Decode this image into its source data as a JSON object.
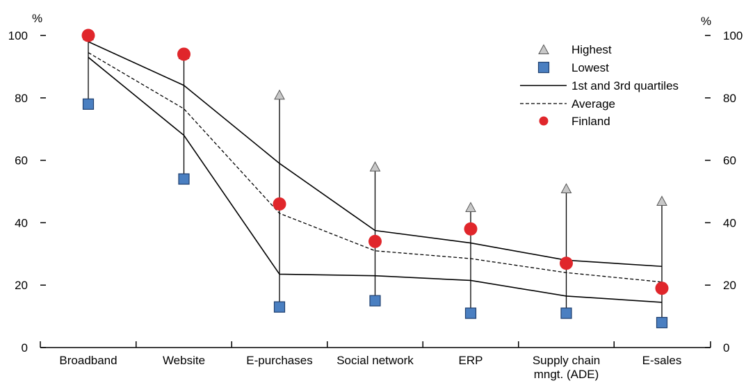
{
  "chart_data": {
    "type": "line",
    "y_unit_left": "%",
    "y_unit_right": "%",
    "ylim": [
      0,
      100
    ],
    "yticks": [
      0,
      20,
      40,
      60,
      80,
      100
    ],
    "categories": [
      [
        "Broadband"
      ],
      [
        "Website"
      ],
      [
        "E-purchases"
      ],
      [
        "Social network"
      ],
      [
        "ERP"
      ],
      [
        "Supply chain",
        "mngt. (ADE)"
      ],
      [
        "E-sales"
      ]
    ],
    "series": [
      {
        "name": "Highest",
        "marker": "triangle",
        "color": "#c8c8c8",
        "values": [
          100,
          94,
          81,
          58,
          45,
          51,
          47
        ]
      },
      {
        "name": "Lowest",
        "marker": "square",
        "color": "#4a7fc1",
        "values": [
          78,
          54,
          13,
          15,
          11,
          11,
          8
        ]
      },
      {
        "name": "1st and 3rd quartiles",
        "line": "solid",
        "upper": [
          98,
          84,
          59,
          37.5,
          33.5,
          28,
          26
        ],
        "lower": [
          93,
          68,
          23.5,
          23,
          21.5,
          16.5,
          14.5
        ]
      },
      {
        "name": "Average",
        "line": "dashed",
        "values": [
          94.5,
          76.5,
          43,
          31,
          28.5,
          24,
          21
        ]
      },
      {
        "name": "Finland",
        "marker": "circle",
        "color": "#e0262b",
        "values": [
          100,
          94,
          46,
          34,
          38,
          27,
          19
        ]
      }
    ],
    "legend_position": "top-right"
  }
}
